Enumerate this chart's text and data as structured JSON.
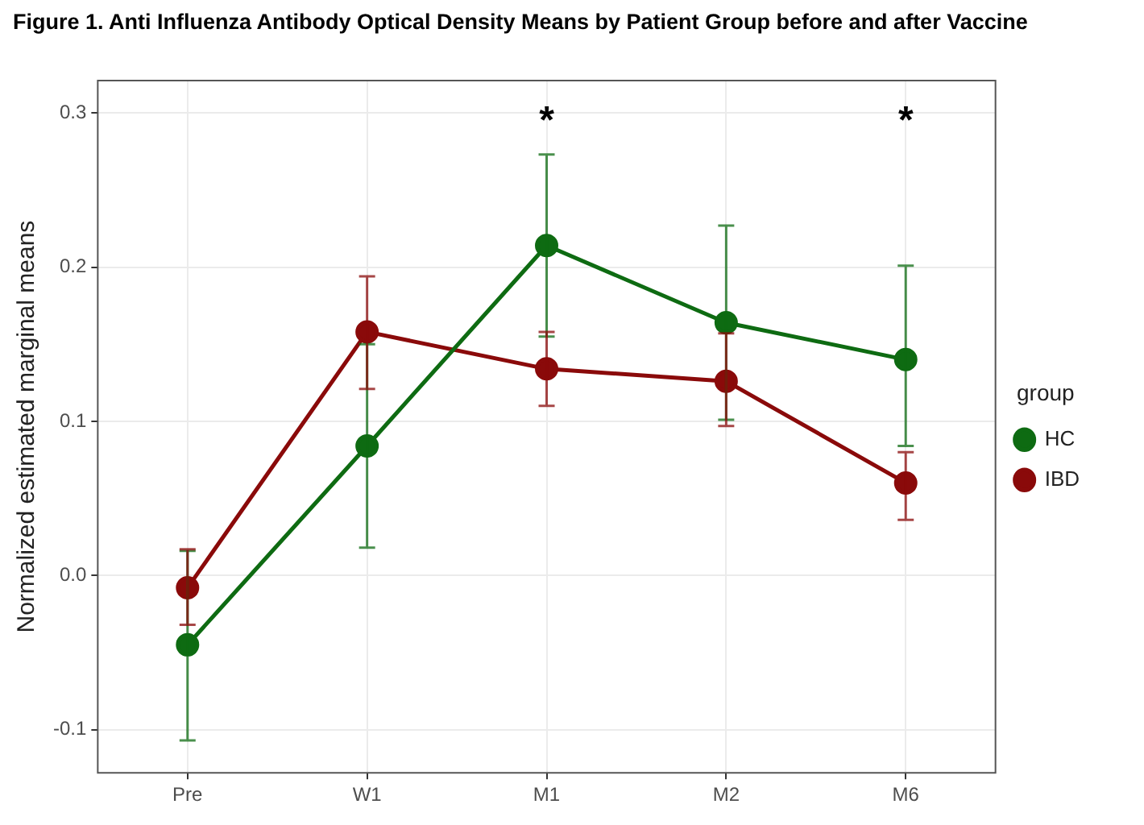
{
  "chart_data": {
    "type": "line",
    "title": "Figure 1. Anti Influenza Antibody Optical Density Means by Patient Group before and after Vaccine",
    "ylabel": "Normalized estimated marginal means",
    "legend_title": "group",
    "categories": [
      "Pre",
      "W1",
      "M1",
      "M2",
      "M6"
    ],
    "series": [
      {
        "name": "HC",
        "color": "#0e6b12",
        "values": [
          -0.045,
          0.084,
          0.214,
          0.164,
          0.14
        ],
        "errors": [
          [
            -0.107,
            0.016
          ],
          [
            0.018,
            0.15
          ],
          [
            0.155,
            0.273
          ],
          [
            0.101,
            0.227
          ],
          [
            0.084,
            0.201
          ]
        ]
      },
      {
        "name": "IBD",
        "color": "#8a0a0a",
        "values": [
          -0.008,
          0.158,
          0.134,
          0.126,
          0.06
        ],
        "errors": [
          [
            -0.032,
            0.017
          ],
          [
            0.121,
            0.194
          ],
          [
            0.11,
            0.158
          ],
          [
            0.097,
            0.157
          ],
          [
            0.036,
            0.08
          ]
        ]
      }
    ],
    "ylim": [
      -0.128,
      0.321
    ],
    "yticks": [
      {
        "value": -0.1,
        "label": "-0.1"
      },
      {
        "value": 0,
        "label": "0.0"
      },
      0.1,
      0.2,
      0.3
    ],
    "annotations": [
      "*",
      "*"
    ],
    "grid": true,
    "legend": "right",
    "marker": "circle",
    "line_style": "solid"
  }
}
